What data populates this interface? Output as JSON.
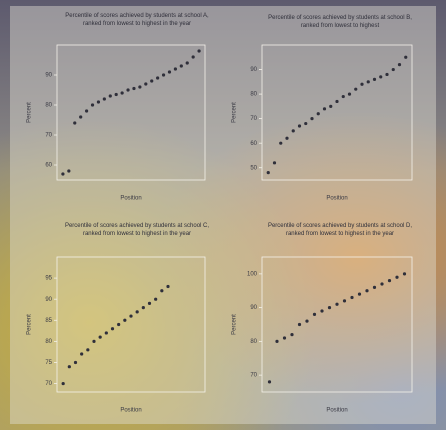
{
  "chart_data": [
    {
      "type": "scatter",
      "title": "Percentile of scores achieved by students at school A, ranked from lowest to highest in the year",
      "x": [
        1,
        2,
        3,
        4,
        5,
        6,
        7,
        8,
        9,
        10,
        11,
        12,
        13,
        14,
        15,
        16,
        17,
        18,
        19,
        20,
        21,
        22,
        23,
        24
      ],
      "values": [
        57,
        58,
        74,
        76,
        78,
        80,
        81,
        82,
        83,
        83.5,
        84,
        85,
        85.5,
        86,
        87,
        88,
        89,
        90,
        91,
        92,
        93,
        94,
        96,
        98
      ],
      "xlim": [
        0,
        25
      ],
      "ylim": [
        55,
        100
      ],
      "yticks": [
        60,
        70,
        80,
        90
      ],
      "x_label": "Position",
      "y_label": "Percent",
      "color": "#2f2f3a"
    },
    {
      "type": "scatter",
      "title": "Percentile of scores achieved by students at school B, ranked from lowest to highest",
      "x": [
        1,
        2,
        3,
        4,
        5,
        6,
        7,
        8,
        9,
        10,
        11,
        12,
        13,
        14,
        15,
        16,
        17,
        18,
        19,
        20,
        21,
        22,
        23
      ],
      "values": [
        48,
        52,
        60,
        62,
        65,
        67,
        68,
        70,
        72,
        74,
        75,
        77,
        79,
        80,
        82,
        84,
        85,
        86,
        87,
        88,
        90,
        92,
        95
      ],
      "xlim": [
        0,
        24
      ],
      "ylim": [
        45,
        100
      ],
      "yticks": [
        50,
        60,
        70,
        80,
        90
      ],
      "x_label": "Position",
      "y_label": "Percent",
      "color": "#2f2f3a"
    },
    {
      "type": "scatter",
      "title": "Percentile of scores achieved by students at school C, ranked from lowest to highest in the year",
      "x": [
        1,
        2,
        3,
        4,
        5,
        6,
        7,
        8,
        9,
        10,
        11,
        12,
        13,
        14,
        15,
        16,
        17,
        18
      ],
      "values": [
        70,
        74,
        75,
        77,
        78,
        80,
        81,
        82,
        83,
        84,
        85,
        86,
        87,
        88,
        89,
        90,
        92,
        93
      ],
      "xlim": [
        0,
        24
      ],
      "ylim": [
        68,
        100
      ],
      "yticks": [
        70,
        75,
        80,
        85,
        90,
        95
      ],
      "x_label": "Position",
      "y_label": "Percent",
      "color": "#2f2f3a"
    },
    {
      "type": "scatter",
      "title": "Percentile of scores achieved by students at school D, ranked from lowest to highest in the year",
      "x": [
        1,
        2,
        3,
        4,
        5,
        6,
        7,
        8,
        9,
        10,
        11,
        12,
        13,
        14,
        15,
        16,
        17,
        18,
        19
      ],
      "values": [
        68,
        80,
        81,
        82,
        85,
        86,
        88,
        89,
        90,
        91,
        92,
        93,
        94,
        95,
        96,
        97,
        98,
        99,
        100
      ],
      "xlim": [
        0,
        20
      ],
      "ylim": [
        65,
        105
      ],
      "yticks": [
        70,
        80,
        90,
        100
      ],
      "x_label": "Position",
      "y_label": "Percent",
      "color": "#2f2f3a"
    }
  ]
}
